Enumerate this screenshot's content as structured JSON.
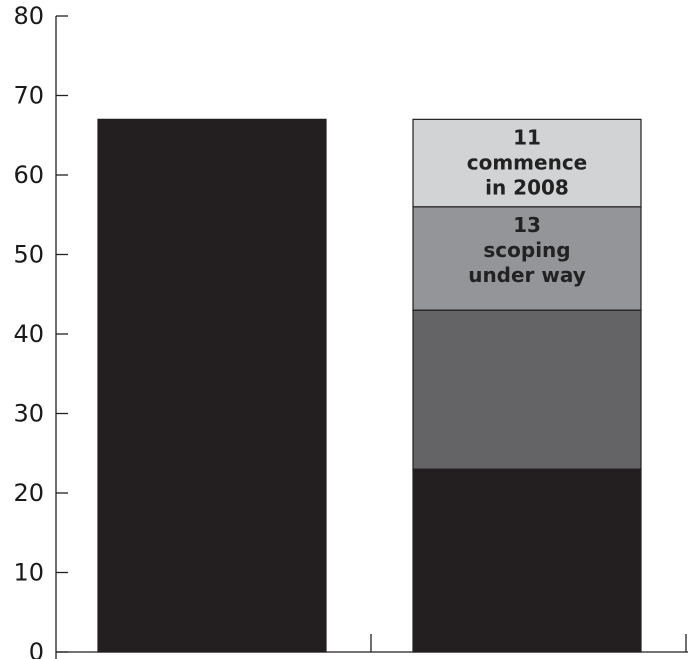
{
  "chart_data": {
    "type": "bar",
    "stacked": true,
    "ylim": [
      0,
      80
    ],
    "yticks": [
      0,
      10,
      20,
      30,
      40,
      50,
      60,
      70,
      80
    ],
    "grid": false,
    "bars": [
      {
        "segments": [
          {
            "value": 67,
            "color": "#231f20",
            "label_lines": []
          }
        ]
      },
      {
        "segments": [
          {
            "value": 23,
            "color": "#231f20",
            "label_lines": []
          },
          {
            "value": 20,
            "color": "#646466",
            "label_lines": []
          },
          {
            "value": 13,
            "color": "#939598",
            "label_lines": [
              "13",
              "scoping",
              "under way"
            ]
          },
          {
            "value": 11,
            "color": "#d1d3d4",
            "label_lines": [
              "11",
              "commence",
              "in 2008"
            ]
          }
        ]
      }
    ]
  }
}
